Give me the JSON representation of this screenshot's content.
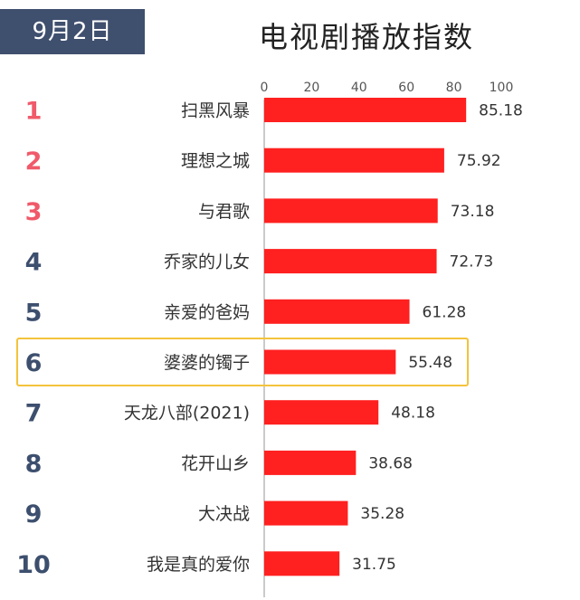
{
  "header": {
    "date_label": "9月2日",
    "title": "电视剧播放指数"
  },
  "colors": {
    "bar": "#ff2020",
    "rank_top": "#f05a6a",
    "rank_other": "#3d4f6e",
    "badge_bg": "#3f4f6e",
    "highlight": "#f3c33b"
  },
  "highlight_rank": "6",
  "chart_data": {
    "type": "bar",
    "orientation": "horizontal",
    "title": "电视剧播放指数",
    "xlim": [
      0,
      100
    ],
    "xticks": [
      "0",
      "20",
      "40",
      "60",
      "80",
      "100"
    ],
    "categories": [
      "扫黑风暴",
      "理想之城",
      "与君歌",
      "乔家的儿女",
      "亲爱的爸妈",
      "婆婆的镯子",
      "天龙八部(2021)",
      "花开山乡",
      "大决战",
      "我是真的爱你"
    ],
    "ranks": [
      "1",
      "2",
      "3",
      "4",
      "5",
      "6",
      "7",
      "8",
      "9",
      "10"
    ],
    "values": [
      85.18,
      75.92,
      73.18,
      72.73,
      61.28,
      55.48,
      48.18,
      38.68,
      35.28,
      31.75
    ],
    "value_labels": [
      "85.18",
      "75.92",
      "73.18",
      "72.73",
      "61.28",
      "55.48",
      "48.18",
      "38.68",
      "35.28",
      "31.75"
    ]
  }
}
